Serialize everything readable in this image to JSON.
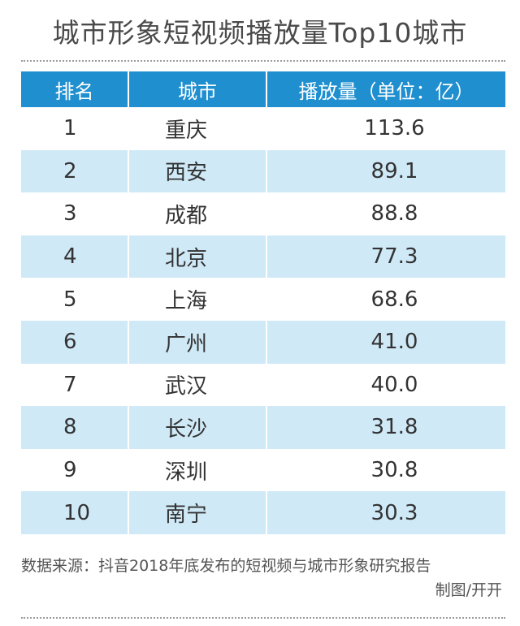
{
  "chart_data": {
    "type": "table",
    "title": "城市形象短视频播放量Top10城市",
    "columns": [
      "排名",
      "城市",
      "播放量（单位：亿）"
    ],
    "rows": [
      {
        "rank": "1",
        "city": "重庆",
        "value": "113.6"
      },
      {
        "rank": "2",
        "city": "西安",
        "value": "89.1"
      },
      {
        "rank": "3",
        "city": "成都",
        "value": "88.8"
      },
      {
        "rank": "4",
        "city": "北京",
        "value": "77.3"
      },
      {
        "rank": "5",
        "city": "上海",
        "value": "68.6"
      },
      {
        "rank": "6",
        "city": "广州",
        "value": "41.0"
      },
      {
        "rank": "7",
        "city": "武汉",
        "value": "40.0"
      },
      {
        "rank": "8",
        "city": "长沙",
        "value": "31.8"
      },
      {
        "rank": "9",
        "city": "深圳",
        "value": "30.8"
      },
      {
        "rank": "10",
        "city": "南宁",
        "value": "30.3"
      }
    ]
  },
  "footer": {
    "source": "数据来源：抖音2018年底发布的短视频与城市形象研究报告",
    "credit": "制图/开开"
  },
  "colors": {
    "header_bg": "#1f8fcf",
    "alt_row_bg": "#cfe9f7"
  }
}
